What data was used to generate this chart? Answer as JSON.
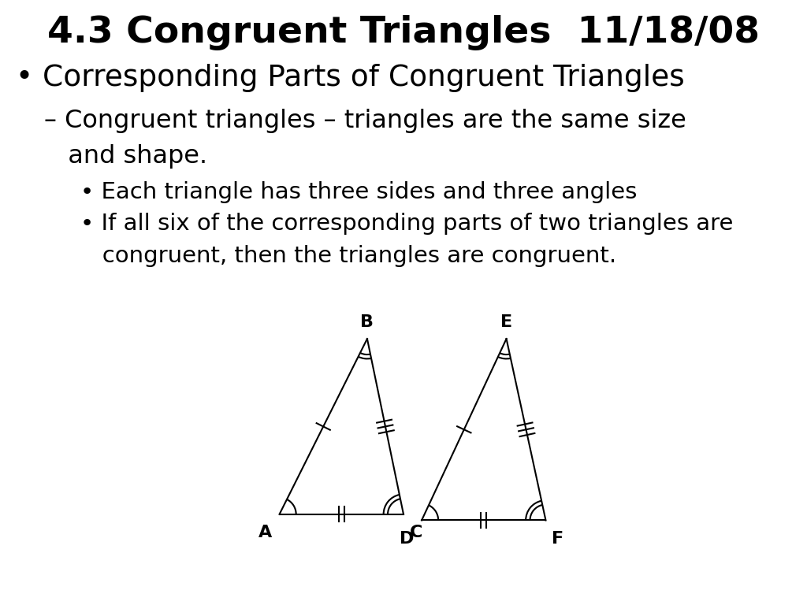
{
  "title": "4.3 Congruent Triangles  11/18/08",
  "title_fontsize": 34,
  "bg_color": "#ffffff",
  "text_color": "#000000",
  "bullet1": "Corresponding Parts of Congruent Triangles",
  "bullet1_fontsize": 27,
  "dash1_line1": "– Congruent triangles – triangles are the same size",
  "dash1_line2": "   and shape.",
  "dash1_fontsize": 23,
  "sub_bullet1": "Each triangle has three sides and three angles",
  "sub_bullet1_fontsize": 21,
  "sub_bullet2_line1": "If all six of the corresponding parts of two triangles are",
  "sub_bullet2_line2": "   congruent, then the triangles are congruent.",
  "sub_bullet2_fontsize": 21,
  "tri1": {
    "A": [
      0.09,
      0.3
    ],
    "B": [
      0.38,
      0.88
    ],
    "C": [
      0.5,
      0.3
    ],
    "label_A": "A",
    "label_B": "B",
    "label_C": "C"
  },
  "tri2": {
    "D": [
      0.56,
      0.28
    ],
    "E": [
      0.84,
      0.88
    ],
    "F": [
      0.97,
      0.28
    ],
    "label_D": "D",
    "label_E": "E",
    "label_F": "F"
  }
}
